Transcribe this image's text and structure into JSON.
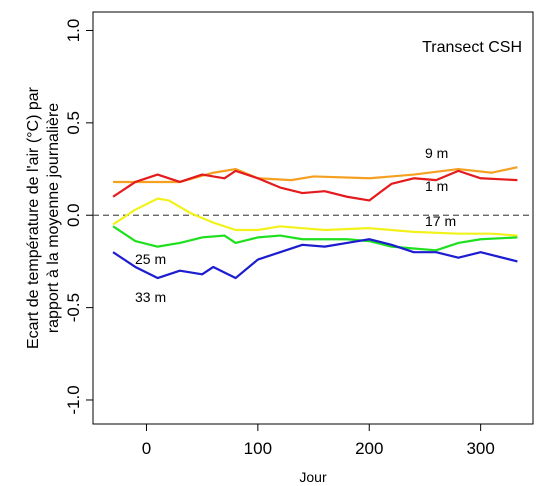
{
  "chart_data": {
    "type": "line",
    "annotation": "Transect CSH",
    "xlabel": "Jour",
    "ylabel": [
      "Ecart de température de l'air  (°C) par",
      "rapport à la moyenne journalière"
    ],
    "xlim": [
      -48,
      347
    ],
    "ylim": [
      -1.13,
      1.1
    ],
    "xticks": [
      0,
      100,
      200,
      300
    ],
    "yticks": [
      {
        "value": -1,
        "label": "-1.0"
      },
      {
        "value": -0.5,
        "label": "-0.5"
      },
      {
        "value": 0,
        "label": "0.0"
      },
      {
        "value": 0.5,
        "label": "0.5"
      },
      {
        "value": 1,
        "label": "1.0"
      }
    ],
    "reference_line": 0,
    "series": [
      {
        "name": "9 m",
        "color": "#f5a021",
        "x": [
          -30,
          0,
          30,
          60,
          80,
          100,
          130,
          150,
          200,
          240,
          280,
          310,
          333
        ],
        "values": [
          0.18,
          0.18,
          0.18,
          0.23,
          0.25,
          0.2,
          0.19,
          0.21,
          0.2,
          0.22,
          0.25,
          0.23,
          0.26
        ]
      },
      {
        "name": "1 m",
        "color": "#e41a1c",
        "x": [
          -30,
          -10,
          10,
          30,
          50,
          70,
          80,
          100,
          120,
          140,
          160,
          180,
          200,
          220,
          240,
          260,
          280,
          300,
          333
        ],
        "values": [
          0.1,
          0.18,
          0.22,
          0.18,
          0.22,
          0.2,
          0.24,
          0.2,
          0.15,
          0.12,
          0.13,
          0.1,
          0.08,
          0.17,
          0.2,
          0.19,
          0.24,
          0.2,
          0.19
        ]
      },
      {
        "name": "17 m",
        "color": "#f2f21a",
        "x": [
          -30,
          -10,
          10,
          20,
          40,
          60,
          80,
          100,
          120,
          140,
          160,
          200,
          240,
          280,
          310,
          333
        ],
        "values": [
          -0.05,
          0.03,
          0.09,
          0.08,
          0.01,
          -0.04,
          -0.08,
          -0.08,
          -0.06,
          -0.07,
          -0.08,
          -0.07,
          -0.09,
          -0.1,
          -0.1,
          -0.11
        ]
      },
      {
        "name": "25 m",
        "color": "#1ee01e",
        "x": [
          -30,
          -10,
          10,
          30,
          50,
          70,
          80,
          100,
          120,
          140,
          160,
          180,
          200,
          220,
          240,
          260,
          280,
          300,
          333
        ],
        "values": [
          -0.06,
          -0.14,
          -0.17,
          -0.15,
          -0.12,
          -0.11,
          -0.15,
          -0.12,
          -0.11,
          -0.13,
          -0.13,
          -0.13,
          -0.14,
          -0.17,
          -0.18,
          -0.19,
          -0.15,
          -0.13,
          -0.12
        ]
      },
      {
        "name": "33 m",
        "color": "#1c1cd0",
        "x": [
          -30,
          -10,
          10,
          30,
          50,
          60,
          80,
          100,
          120,
          140,
          160,
          180,
          200,
          220,
          240,
          260,
          280,
          300,
          333
        ],
        "values": [
          -0.2,
          -0.28,
          -0.34,
          -0.3,
          -0.32,
          -0.28,
          -0.34,
          -0.24,
          -0.2,
          -0.16,
          -0.17,
          -0.15,
          -0.13,
          -0.16,
          -0.2,
          -0.2,
          -0.23,
          -0.2,
          -0.25
        ]
      }
    ]
  }
}
